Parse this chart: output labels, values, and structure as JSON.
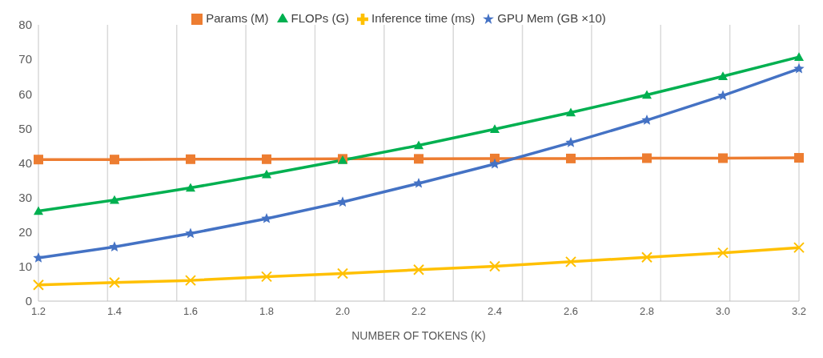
{
  "chart_data": {
    "type": "line",
    "xlabel": "NUMBER OF TOKENS (K)",
    "categories": [
      "1.2",
      "1.4",
      "1.6",
      "1.8",
      "2.0",
      "2.2",
      "2.4",
      "2.6",
      "2.8",
      "3.0",
      "3.2"
    ],
    "series": [
      {
        "name": "Params (M)",
        "color": "#ed7d31",
        "marker": "square",
        "values": [
          41.0,
          41.0,
          41.1,
          41.1,
          41.2,
          41.2,
          41.3,
          41.3,
          41.4,
          41.4,
          41.5
        ]
      },
      {
        "name": "FLOPs (G)",
        "color": "#00b050",
        "marker": "triangle",
        "values": [
          26.1,
          29.3,
          32.8,
          36.7,
          40.8,
          45.1,
          49.8,
          54.6,
          59.7,
          65.1,
          70.7
        ]
      },
      {
        "name": "Inference time (ms)",
        "color": "#ffc000",
        "marker": "cross",
        "values": [
          4.7,
          5.4,
          6.0,
          7.1,
          8.0,
          9.1,
          10.1,
          11.4,
          12.7,
          14.0,
          15.5
        ]
      },
      {
        "name": "GPU Mem (GB ×10)",
        "color": "#4472c4",
        "marker": "star",
        "values": [
          12.5,
          15.7,
          19.6,
          23.9,
          28.7,
          34.1,
          39.7,
          45.9,
          52.4,
          59.5,
          67.3
        ]
      }
    ],
    "ylim": [
      0,
      80
    ],
    "yticks": [
      0,
      10,
      20,
      30,
      40,
      50,
      60,
      70,
      80
    ],
    "grid": "x",
    "legend": "top",
    "line_style": "solid"
  }
}
